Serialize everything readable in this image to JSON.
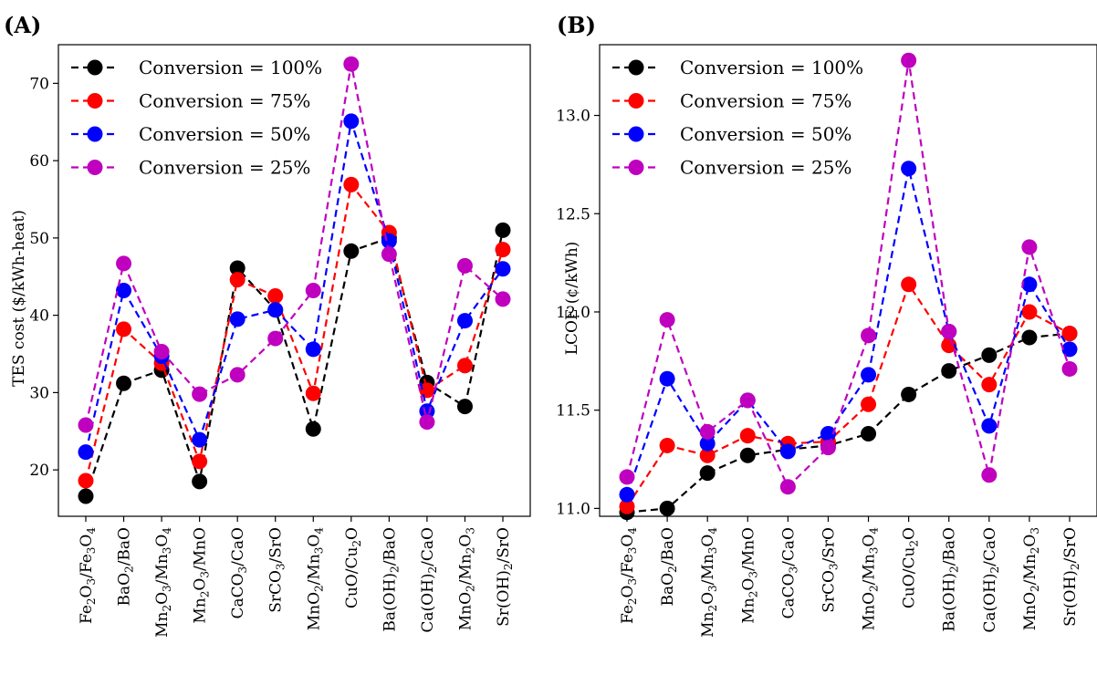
{
  "chart_data": [
    {
      "panel": "(A)",
      "type": "line",
      "ylabel": "TES cost ($/kWh-heat)",
      "ylim": [
        14,
        75
      ],
      "yticks": [
        20,
        30,
        40,
        50,
        60,
        70
      ],
      "categories": [
        {
          "base": "Fe",
          "parts": [
            [
              "Fe",
              ""
            ],
            [
              "2",
              "sub"
            ],
            [
              "O",
              ""
            ],
            [
              "3",
              "sub"
            ],
            [
              "/Fe",
              ""
            ],
            [
              "3",
              "sub"
            ],
            [
              "O",
              ""
            ],
            [
              "4",
              "sub"
            ]
          ]
        },
        {
          "base": "BaO2/BaO",
          "parts": [
            [
              "BaO",
              ""
            ],
            [
              "2",
              "sub"
            ],
            [
              "/BaO",
              ""
            ]
          ]
        },
        {
          "base": "Mn2O3/Mn3O4",
          "parts": [
            [
              "Mn",
              ""
            ],
            [
              "2",
              "sub"
            ],
            [
              "O",
              ""
            ],
            [
              "3",
              "sub"
            ],
            [
              "/Mn",
              ""
            ],
            [
              "3",
              "sub"
            ],
            [
              "O",
              ""
            ],
            [
              "4",
              "sub"
            ]
          ]
        },
        {
          "base": "Mn2O3/MnO",
          "parts": [
            [
              "Mn",
              ""
            ],
            [
              "2",
              "sub"
            ],
            [
              "O",
              ""
            ],
            [
              "3",
              "sub"
            ],
            [
              "/MnO",
              ""
            ]
          ]
        },
        {
          "base": "CaCO3/CaO",
          "parts": [
            [
              "CaCO",
              ""
            ],
            [
              "3",
              "sub"
            ],
            [
              "/CaO",
              ""
            ]
          ]
        },
        {
          "base": "SrCO3/SrO",
          "parts": [
            [
              "SrCO",
              ""
            ],
            [
              "3",
              "sub"
            ],
            [
              "/SrO",
              ""
            ]
          ]
        },
        {
          "base": "MnO2/Mn3O4",
          "parts": [
            [
              "MnO",
              ""
            ],
            [
              "2",
              "sub"
            ],
            [
              "/Mn",
              ""
            ],
            [
              "3",
              "sub"
            ],
            [
              "O",
              ""
            ],
            [
              "4",
              "sub"
            ]
          ]
        },
        {
          "base": "CuO/Cu2O",
          "parts": [
            [
              "CuO/Cu",
              ""
            ],
            [
              "2",
              "sub"
            ],
            [
              "O",
              ""
            ]
          ]
        },
        {
          "base": "Ba(OH)2/BaO",
          "parts": [
            [
              "Ba(OH)",
              ""
            ],
            [
              "2",
              "sub"
            ],
            [
              "/BaO",
              ""
            ]
          ]
        },
        {
          "base": "Ca(OH)2/CaO",
          "parts": [
            [
              "Ca(OH)",
              ""
            ],
            [
              "2",
              "sub"
            ],
            [
              "/CaO",
              ""
            ]
          ]
        },
        {
          "base": "MnO2/Mn2O3",
          "parts": [
            [
              "MnO",
              ""
            ],
            [
              "2",
              "sub"
            ],
            [
              "/Mn",
              ""
            ],
            [
              "2",
              "sub"
            ],
            [
              "O",
              ""
            ],
            [
              "3",
              "sub"
            ]
          ]
        },
        {
          "base": "Sr(OH)2/SrO",
          "parts": [
            [
              "Sr(OH)",
              ""
            ],
            [
              "2",
              "sub"
            ],
            [
              "/SrO",
              ""
            ]
          ]
        }
      ],
      "series": [
        {
          "name": "Conversion = 100%",
          "color": "#000000",
          "values": [
            16.6,
            31.2,
            32.9,
            18.5,
            46.1,
            40.7,
            25.3,
            48.3,
            50.0,
            31.3,
            28.2,
            51.0
          ]
        },
        {
          "name": "Conversion = 75%",
          "color": "#ff0000",
          "values": [
            18.6,
            38.2,
            33.8,
            21.1,
            44.6,
            42.5,
            29.9,
            56.9,
            50.7,
            30.3,
            33.5,
            48.5
          ]
        },
        {
          "name": "Conversion = 50%",
          "color": "#0000ff",
          "values": [
            22.3,
            43.2,
            34.7,
            23.9,
            39.5,
            40.7,
            35.6,
            65.1,
            49.6,
            27.6,
            39.3,
            46.0
          ]
        },
        {
          "name": "Conversion = 25%",
          "color": "#bf00bf",
          "values": [
            25.8,
            46.7,
            35.3,
            29.8,
            32.3,
            37.0,
            43.2,
            72.5,
            47.9,
            26.2,
            46.4,
            42.1
          ]
        }
      ],
      "legend": "top-left",
      "grid": false
    },
    {
      "panel": "(B)",
      "type": "line",
      "ylabel": "LCOE (¢/kWh)",
      "ylim": [
        10.96,
        13.36
      ],
      "yticks": [
        11.0,
        11.5,
        12.0,
        12.5,
        13.0
      ],
      "ytick_labels": [
        "11.0",
        "11.5",
        "12.0",
        "12.5",
        "13.0"
      ],
      "categories_ref": 0,
      "series": [
        {
          "name": "Conversion = 100%",
          "color": "#000000",
          "values": [
            10.98,
            11.0,
            11.18,
            11.27,
            11.3,
            11.32,
            11.38,
            11.58,
            11.7,
            11.78,
            11.87,
            11.89
          ]
        },
        {
          "name": "Conversion = 75%",
          "color": "#ff0000",
          "values": [
            11.01,
            11.32,
            11.27,
            11.37,
            11.33,
            11.34,
            11.53,
            12.14,
            11.83,
            11.63,
            12.0,
            11.89
          ]
        },
        {
          "name": "Conversion = 50%",
          "color": "#0000ff",
          "values": [
            11.07,
            11.66,
            11.33,
            11.55,
            11.29,
            11.38,
            11.68,
            12.73,
            11.9,
            11.42,
            12.14,
            11.81
          ]
        },
        {
          "name": "Conversion = 25%",
          "color": "#bf00bf",
          "values": [
            11.16,
            11.96,
            11.39,
            11.55,
            11.11,
            11.31,
            11.88,
            13.28,
            11.9,
            11.17,
            12.33,
            11.71
          ]
        }
      ],
      "legend": "top-left",
      "grid": false
    }
  ]
}
